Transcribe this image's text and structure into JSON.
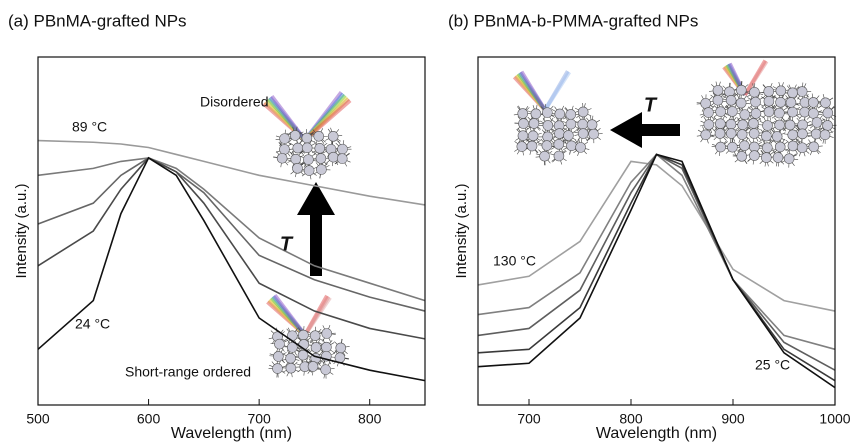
{
  "chart_data": [
    {
      "type": "line",
      "title": "(a)  PBnMA-grafted NPs",
      "x_label": "Wavelength (nm)",
      "y_label": "Intensity (a.u.)",
      "x": [
        500,
        550,
        575,
        600,
        625,
        650,
        700,
        750,
        800,
        850
      ],
      "series": [
        {
          "name": "89 °C",
          "color": "#9a9a9a",
          "values": [
            0.76,
            0.755,
            0.75,
            0.74,
            0.72,
            0.7,
            0.66,
            0.63,
            0.6,
            0.575
          ]
        },
        {
          "color": "#7a7a7a",
          "values": [
            0.66,
            0.68,
            0.7,
            0.71,
            0.68,
            0.62,
            0.48,
            0.4,
            0.35,
            0.3
          ]
        },
        {
          "color": "#666666",
          "values": [
            0.52,
            0.58,
            0.66,
            0.71,
            0.67,
            0.61,
            0.43,
            0.36,
            0.31,
            0.27
          ]
        },
        {
          "color": "#4a4a4a",
          "values": [
            0.4,
            0.5,
            0.62,
            0.71,
            0.67,
            0.58,
            0.35,
            0.27,
            0.22,
            0.19
          ]
        },
        {
          "name": "24 °C",
          "color": "#111111",
          "values": [
            0.16,
            0.3,
            0.55,
            0.71,
            0.66,
            0.53,
            0.25,
            0.14,
            0.1,
            0.07
          ]
        }
      ],
      "annotations": [
        "Disordered",
        "Short-range ordered",
        "T"
      ],
      "xlim": [
        500,
        850
      ],
      "xticks": [
        500,
        600,
        700,
        800
      ],
      "ylim": [
        0,
        1
      ]
    },
    {
      "type": "line",
      "title": "(b)  PBnMA-b-PMMA-grafted NPs",
      "x_label": "Wavelength (nm)",
      "y_label": "Intensity (a.u.)",
      "x": [
        650,
        700,
        750,
        800,
        825,
        850,
        900,
        950,
        1000
      ],
      "series": [
        {
          "name": "130 °C",
          "color": "#a0a0a0",
          "values": [
            0.345,
            0.37,
            0.47,
            0.7,
            0.69,
            0.63,
            0.39,
            0.3,
            0.27
          ]
        },
        {
          "color": "#808080",
          "values": [
            0.26,
            0.28,
            0.38,
            0.64,
            0.72,
            0.66,
            0.36,
            0.2,
            0.16
          ]
        },
        {
          "color": "#5e5e5e",
          "values": [
            0.2,
            0.22,
            0.33,
            0.61,
            0.72,
            0.68,
            0.36,
            0.18,
            0.1
          ]
        },
        {
          "color": "#3a3a3a",
          "values": [
            0.15,
            0.16,
            0.28,
            0.58,
            0.72,
            0.69,
            0.36,
            0.16,
            0.07
          ]
        },
        {
          "name": "25 °C",
          "color": "#111111",
          "values": [
            0.11,
            0.12,
            0.25,
            0.56,
            0.72,
            0.7,
            0.36,
            0.15,
            0.05
          ]
        }
      ],
      "annotations": [
        "T"
      ],
      "xlim": [
        650,
        1000
      ],
      "xticks": [
        700,
        800,
        900,
        1000
      ],
      "ylim": [
        0,
        1
      ]
    }
  ]
}
